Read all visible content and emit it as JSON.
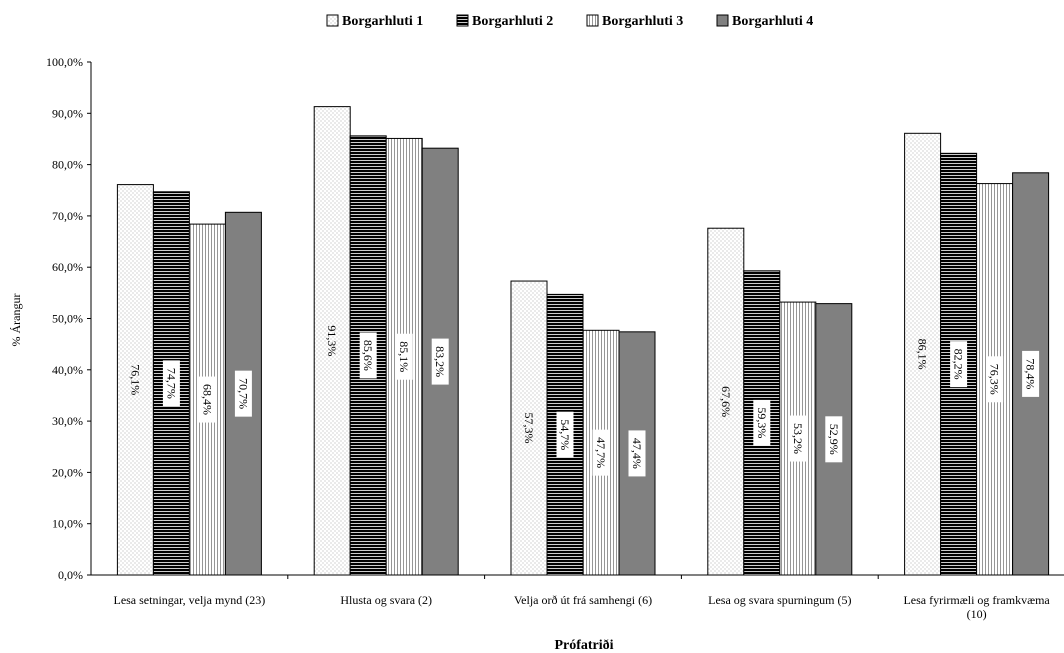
{
  "chart_data": {
    "type": "bar",
    "title": "",
    "xlabel": "Prófatriði",
    "ylabel": "% Árangur",
    "ylim": [
      0,
      100
    ],
    "yticks": [
      "0,0%",
      "10,0%",
      "20,0%",
      "30,0%",
      "40,0%",
      "50,0%",
      "60,0%",
      "70,0%",
      "80,0%",
      "90,0%",
      "100,0%"
    ],
    "legend_position": "top-center",
    "categories": [
      "Lesa setningar, velja mynd (23)",
      "Hlusta og svara (2)",
      "Velja orð út frá samhengi (6)",
      "Lesa og svara spurningum (5)",
      "Lesa fyrirmæli og framkvæma (10)"
    ],
    "series": [
      {
        "name": "Borgarhluti 1",
        "values": [
          76.1,
          91.3,
          57.3,
          67.6,
          86.1
        ],
        "labels": [
          "76,1%",
          "91,3%",
          "57,3%",
          "67,6%",
          "86,1%"
        ],
        "color": "#ffffff",
        "pattern": "dots"
      },
      {
        "name": "Borgarhluti 2",
        "values": [
          74.7,
          85.6,
          54.7,
          59.3,
          82.2
        ],
        "labels": [
          "74,7%",
          "85,6%",
          "54,7%",
          "59,3%",
          "82,2%"
        ],
        "color": "#000000",
        "pattern": "horizontal-lines"
      },
      {
        "name": "Borgarhluti 3",
        "values": [
          68.4,
          85.1,
          47.7,
          53.2,
          76.3
        ],
        "labels": [
          "68,4%",
          "85,1%",
          "47,7%",
          "53,2%",
          "76,3%"
        ],
        "color": "#ffffff",
        "pattern": "vertical-lines"
      },
      {
        "name": "Borgarhluti 4",
        "values": [
          70.7,
          83.2,
          47.4,
          52.9,
          78.4
        ],
        "labels": [
          "70,7%",
          "83,2%",
          "47,4%",
          "52,9%",
          "78,4%"
        ],
        "color": "#808080",
        "pattern": "solid"
      }
    ]
  }
}
